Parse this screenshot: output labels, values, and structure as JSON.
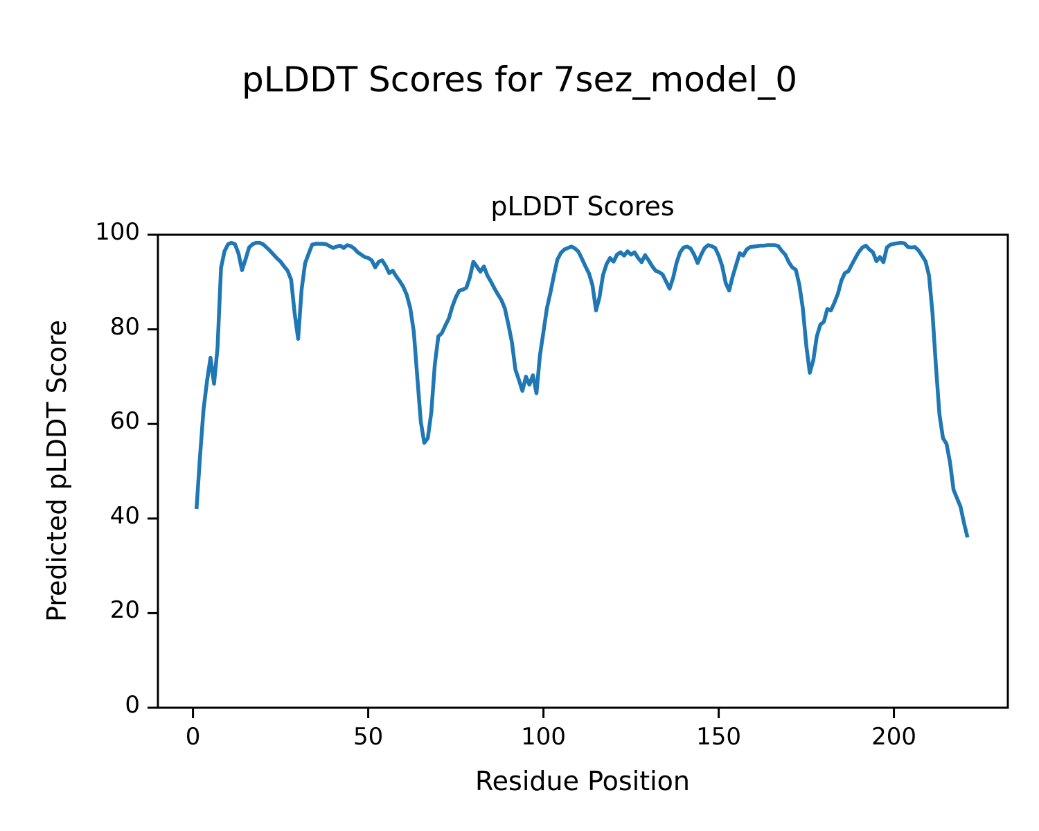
{
  "figure": {
    "suptitle": "pLDDT Scores for 7sez_model_0",
    "axes_title": "pLDDT Scores",
    "xlabel": "Residue Position",
    "ylabel": "Predicted pLDDT Score"
  },
  "chart_data": {
    "type": "line",
    "suptitle": "pLDDT Scores for 7sez_model_0",
    "title": "pLDDT Scores",
    "xlabel": "Residue Position",
    "ylabel": "Predicted pLDDT Score",
    "xlim": [
      -10,
      232.5
    ],
    "ylim": [
      0,
      100
    ],
    "xticks": [
      0,
      50,
      100,
      150,
      200
    ],
    "yticks": [
      0,
      20,
      40,
      60,
      80,
      100
    ],
    "grid": false,
    "legend_position": "none",
    "line_color": "#1f77b4",
    "line_width": 5.5,
    "x_range": [
      1,
      221
    ],
    "y": [
      42,
      53,
      63,
      69,
      74,
      68.5,
      76,
      93,
      96.5,
      98,
      98.3,
      98,
      96,
      92.5,
      94.8,
      97.3,
      98,
      98.3,
      98.3,
      98,
      97.3,
      96.6,
      95.8,
      95,
      94.3,
      93.3,
      92.4,
      90.5,
      83.5,
      78,
      88.5,
      94,
      96,
      97.9,
      98.1,
      98.1,
      98.1,
      98,
      97.6,
      97.2,
      97.5,
      97.7,
      97.2,
      97.8,
      97.6,
      97.1,
      96.3,
      95.8,
      95.3,
      95.1,
      94.6,
      93.1,
      94.3,
      94.6,
      93.4,
      91.9,
      92.4,
      91.2,
      90.2,
      89,
      87.3,
      84.5,
      79.5,
      70,
      60.5,
      56,
      57,
      62.5,
      72.5,
      78.5,
      79.2,
      80.8,
      82.3,
      84.8,
      86.8,
      88.2,
      88.4,
      88.8,
      91,
      94.3,
      93.3,
      92.2,
      93.3,
      91.4,
      90.1,
      88.7,
      87.4,
      86.2,
      84.4,
      81,
      77.3,
      71.5,
      69.3,
      67,
      70,
      68.3,
      70.3,
      66.5,
      74.5,
      79.5,
      84.5,
      87.8,
      91.5,
      94.8,
      96.2,
      96.9,
      97.2,
      97.5,
      97.1,
      96.4,
      94.9,
      93.3,
      91.8,
      89.3,
      84,
      86.8,
      91.5,
      93.8,
      95.1,
      94.3,
      95.8,
      96.3,
      95.6,
      96.5,
      95.8,
      96.3,
      95.1,
      94.2,
      95.7,
      94.6,
      93.4,
      92.4,
      92.1,
      91.6,
      90.1,
      88.6,
      90.9,
      94.1,
      96.3,
      97.3,
      97.5,
      97.1,
      95.8,
      94,
      95.8,
      97.2,
      97.8,
      97.6,
      97.2,
      95.6,
      93.4,
      89.8,
      88.2,
      91.2,
      93.7,
      96.1,
      95.6,
      96.9,
      97.4,
      97.5,
      97.6,
      97.7,
      97.7,
      97.8,
      97.8,
      97.8,
      97.6,
      96.6,
      95.8,
      94.2,
      93.1,
      92.6,
      89.5,
      84.5,
      76.5,
      70.8,
      73.5,
      78.5,
      81,
      81.6,
      84.3,
      84,
      85.6,
      87.5,
      90.3,
      91.9,
      92.3,
      93.7,
      95.1,
      96.4,
      97.3,
      97.7,
      96.9,
      96.3,
      94.4,
      95.3,
      94.2,
      97.3,
      97.9,
      98.1,
      98.2,
      98.3,
      98.2,
      97.4,
      97.3,
      97.4,
      96.7,
      95.6,
      94.4,
      91.4,
      83.5,
      72,
      62,
      57,
      55.8,
      51.9,
      46.1,
      44.3,
      42.5,
      39,
      36
    ]
  }
}
